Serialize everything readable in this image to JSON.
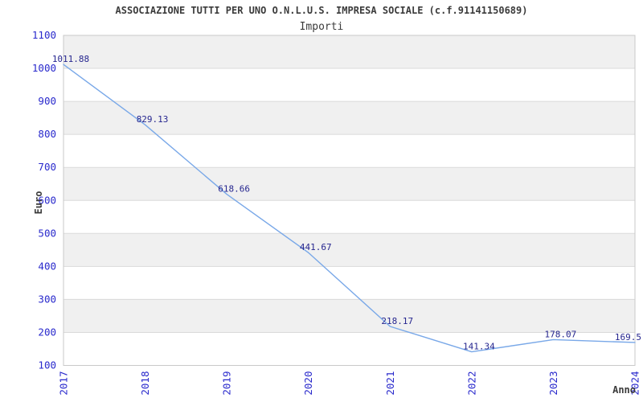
{
  "header": {
    "title": "ASSOCIAZIONE TUTTI PER UNO O.N.L.U.S. IMPRESA SOCIALE (c.f.91141150689)",
    "subtitle": "Importi"
  },
  "colors": {
    "title_text": "#3b3b3b",
    "tick_label_blue": "#2929cc",
    "data_label_navy": "#26268f",
    "line_blue": "#79a8e8",
    "band_gray": "#f0f0f0",
    "gridline": "#dadada",
    "plot_border": "#c9c9c9",
    "background": "#ffffff"
  },
  "chart_data": {
    "type": "line",
    "title": "ASSOCIAZIONE TUTTI PER UNO O.N.L.U.S. IMPRESA SOCIALE (c.f.91141150689)",
    "subtitle": "Importi",
    "xlabel": "Anno",
    "ylabel": "Euro",
    "categories": [
      "2017",
      "2018",
      "2019",
      "2020",
      "2021",
      "2022",
      "2023",
      "2024"
    ],
    "series": [
      {
        "name": "Importi",
        "values": [
          1011.88,
          829.13,
          618.66,
          441.67,
          218.17,
          141.34,
          178.07,
          169.5
        ],
        "point_labels": [
          "1011.88",
          "829.13",
          "618.66",
          "441.67",
          "218.17",
          "141.34",
          "178.07",
          "169.5"
        ]
      }
    ],
    "yticks": [
      100,
      200,
      300,
      400,
      500,
      600,
      700,
      800,
      900,
      1000,
      1100
    ],
    "ylim": [
      100,
      1100
    ],
    "grid": "horizontal gridlines with alternating gray/white bands",
    "x_tick_rotation_deg": -90,
    "legend": "none",
    "markers": "none"
  }
}
